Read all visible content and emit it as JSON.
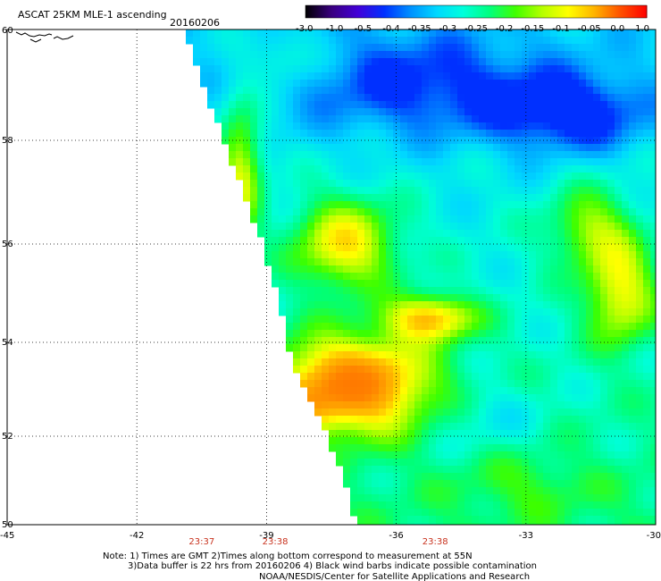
{
  "chart_data": {
    "type": "heatmap",
    "title": "ASCAT 25KM MLE-1 ascending",
    "date": "20160206",
    "xlabel": "",
    "ylabel": "",
    "xlim": [
      -45,
      -30
    ],
    "ylim": [
      50,
      60
    ],
    "x_ticks": [
      "-45",
      "-42",
      "-39",
      "-36",
      "-33",
      "-30"
    ],
    "y_ticks": [
      "60",
      "58",
      "56",
      "54",
      "52",
      "50"
    ],
    "colorbar": {
      "labels": [
        "-3.0",
        "-1.0",
        "-0.5",
        "-0.4",
        "-0.35",
        "-0.3",
        "-0.25",
        "-0.2",
        "-0.15",
        "-0.1",
        "-0.05",
        "0.0",
        "1.0"
      ],
      "colors": [
        "#000000",
        "#3a0080",
        "#4200d8",
        "#0030ff",
        "#0090ff",
        "#00d8ff",
        "#00ffdc",
        "#00ff80",
        "#40ff00",
        "#b4ff00",
        "#ffff00",
        "#ffb400",
        "#ff5000",
        "#ff0000"
      ]
    },
    "grid": true,
    "swath_west_edge_lon": [
      {
        "lat": 60.0,
        "lon": -40.9
      },
      {
        "lat": 58.0,
        "lon": -40.0
      },
      {
        "lat": 56.0,
        "lon": -39.1
      },
      {
        "lat": 54.5,
        "lon": -38.6
      },
      {
        "lat": 53.5,
        "lon": -38.4
      },
      {
        "lat": 52.0,
        "lon": -37.6
      },
      {
        "lat": 51.0,
        "lon": -37.2
      },
      {
        "lat": 50.0,
        "lon": -36.9
      }
    ],
    "mle_field": {
      "base": -0.25,
      "north_gradient": -0.05,
      "features": [
        {
          "lon": -37.2,
          "lat": 56.0,
          "amp": 0.22,
          "rlon": 1.2,
          "rlat": 0.9
        },
        {
          "lon": -37.0,
          "lat": 53.1,
          "amp": 0.34,
          "rlon": 1.8,
          "rlat": 1.0
        },
        {
          "lon": -35.2,
          "lat": 54.5,
          "amp": 0.24,
          "rlon": 1.0,
          "rlat": 0.45
        },
        {
          "lon": -30.8,
          "lat": 55.0,
          "amp": 0.2,
          "rlon": 0.8,
          "rlat": 1.0
        },
        {
          "lon": -31.5,
          "lat": 56.3,
          "amp": 0.15,
          "rlon": 1.0,
          "rlat": 0.8
        },
        {
          "lon": -39.6,
          "lat": 57.4,
          "amp": 0.2,
          "rlon": 0.5,
          "rlat": 1.3
        },
        {
          "lon": -38.2,
          "lat": 52.6,
          "amp": 0.08,
          "rlon": 0.7,
          "rlat": 0.5
        },
        {
          "lon": -32.0,
          "lat": 58.5,
          "amp": -0.15,
          "rlon": 1.8,
          "rlat": 0.7
        },
        {
          "lon": -35.5,
          "lat": 59.0,
          "amp": -0.12,
          "rlon": 2.8,
          "rlat": 0.9
        },
        {
          "lon": -34.0,
          "lat": 52.4,
          "amp": -0.05,
          "rlon": 1.5,
          "rlat": 0.8
        },
        {
          "lon": -33.0,
          "lat": 50.9,
          "amp": 0.05,
          "rlon": 1.5,
          "rlat": 0.7
        },
        {
          "lon": -38.5,
          "lat": 59.5,
          "amp": 0.08,
          "rlon": 0.8,
          "rlat": 0.5
        }
      ]
    },
    "time_labels": [
      {
        "lon": -40.5,
        "text": "23:37"
      },
      {
        "lon": -38.8,
        "text": "23:38"
      },
      {
        "lon": -35.1,
        "text": "23:38"
      }
    ],
    "notes": [
      "Note: 1) Times are GMT 2)Times along bottom correspond to measurement at 55N",
      "3)Data buffer is 22 hrs from 20160206 4) Black wind barbs indicate possible contamination",
      "NOAA/NESDIS/Center for Satellite Applications and Research"
    ]
  }
}
